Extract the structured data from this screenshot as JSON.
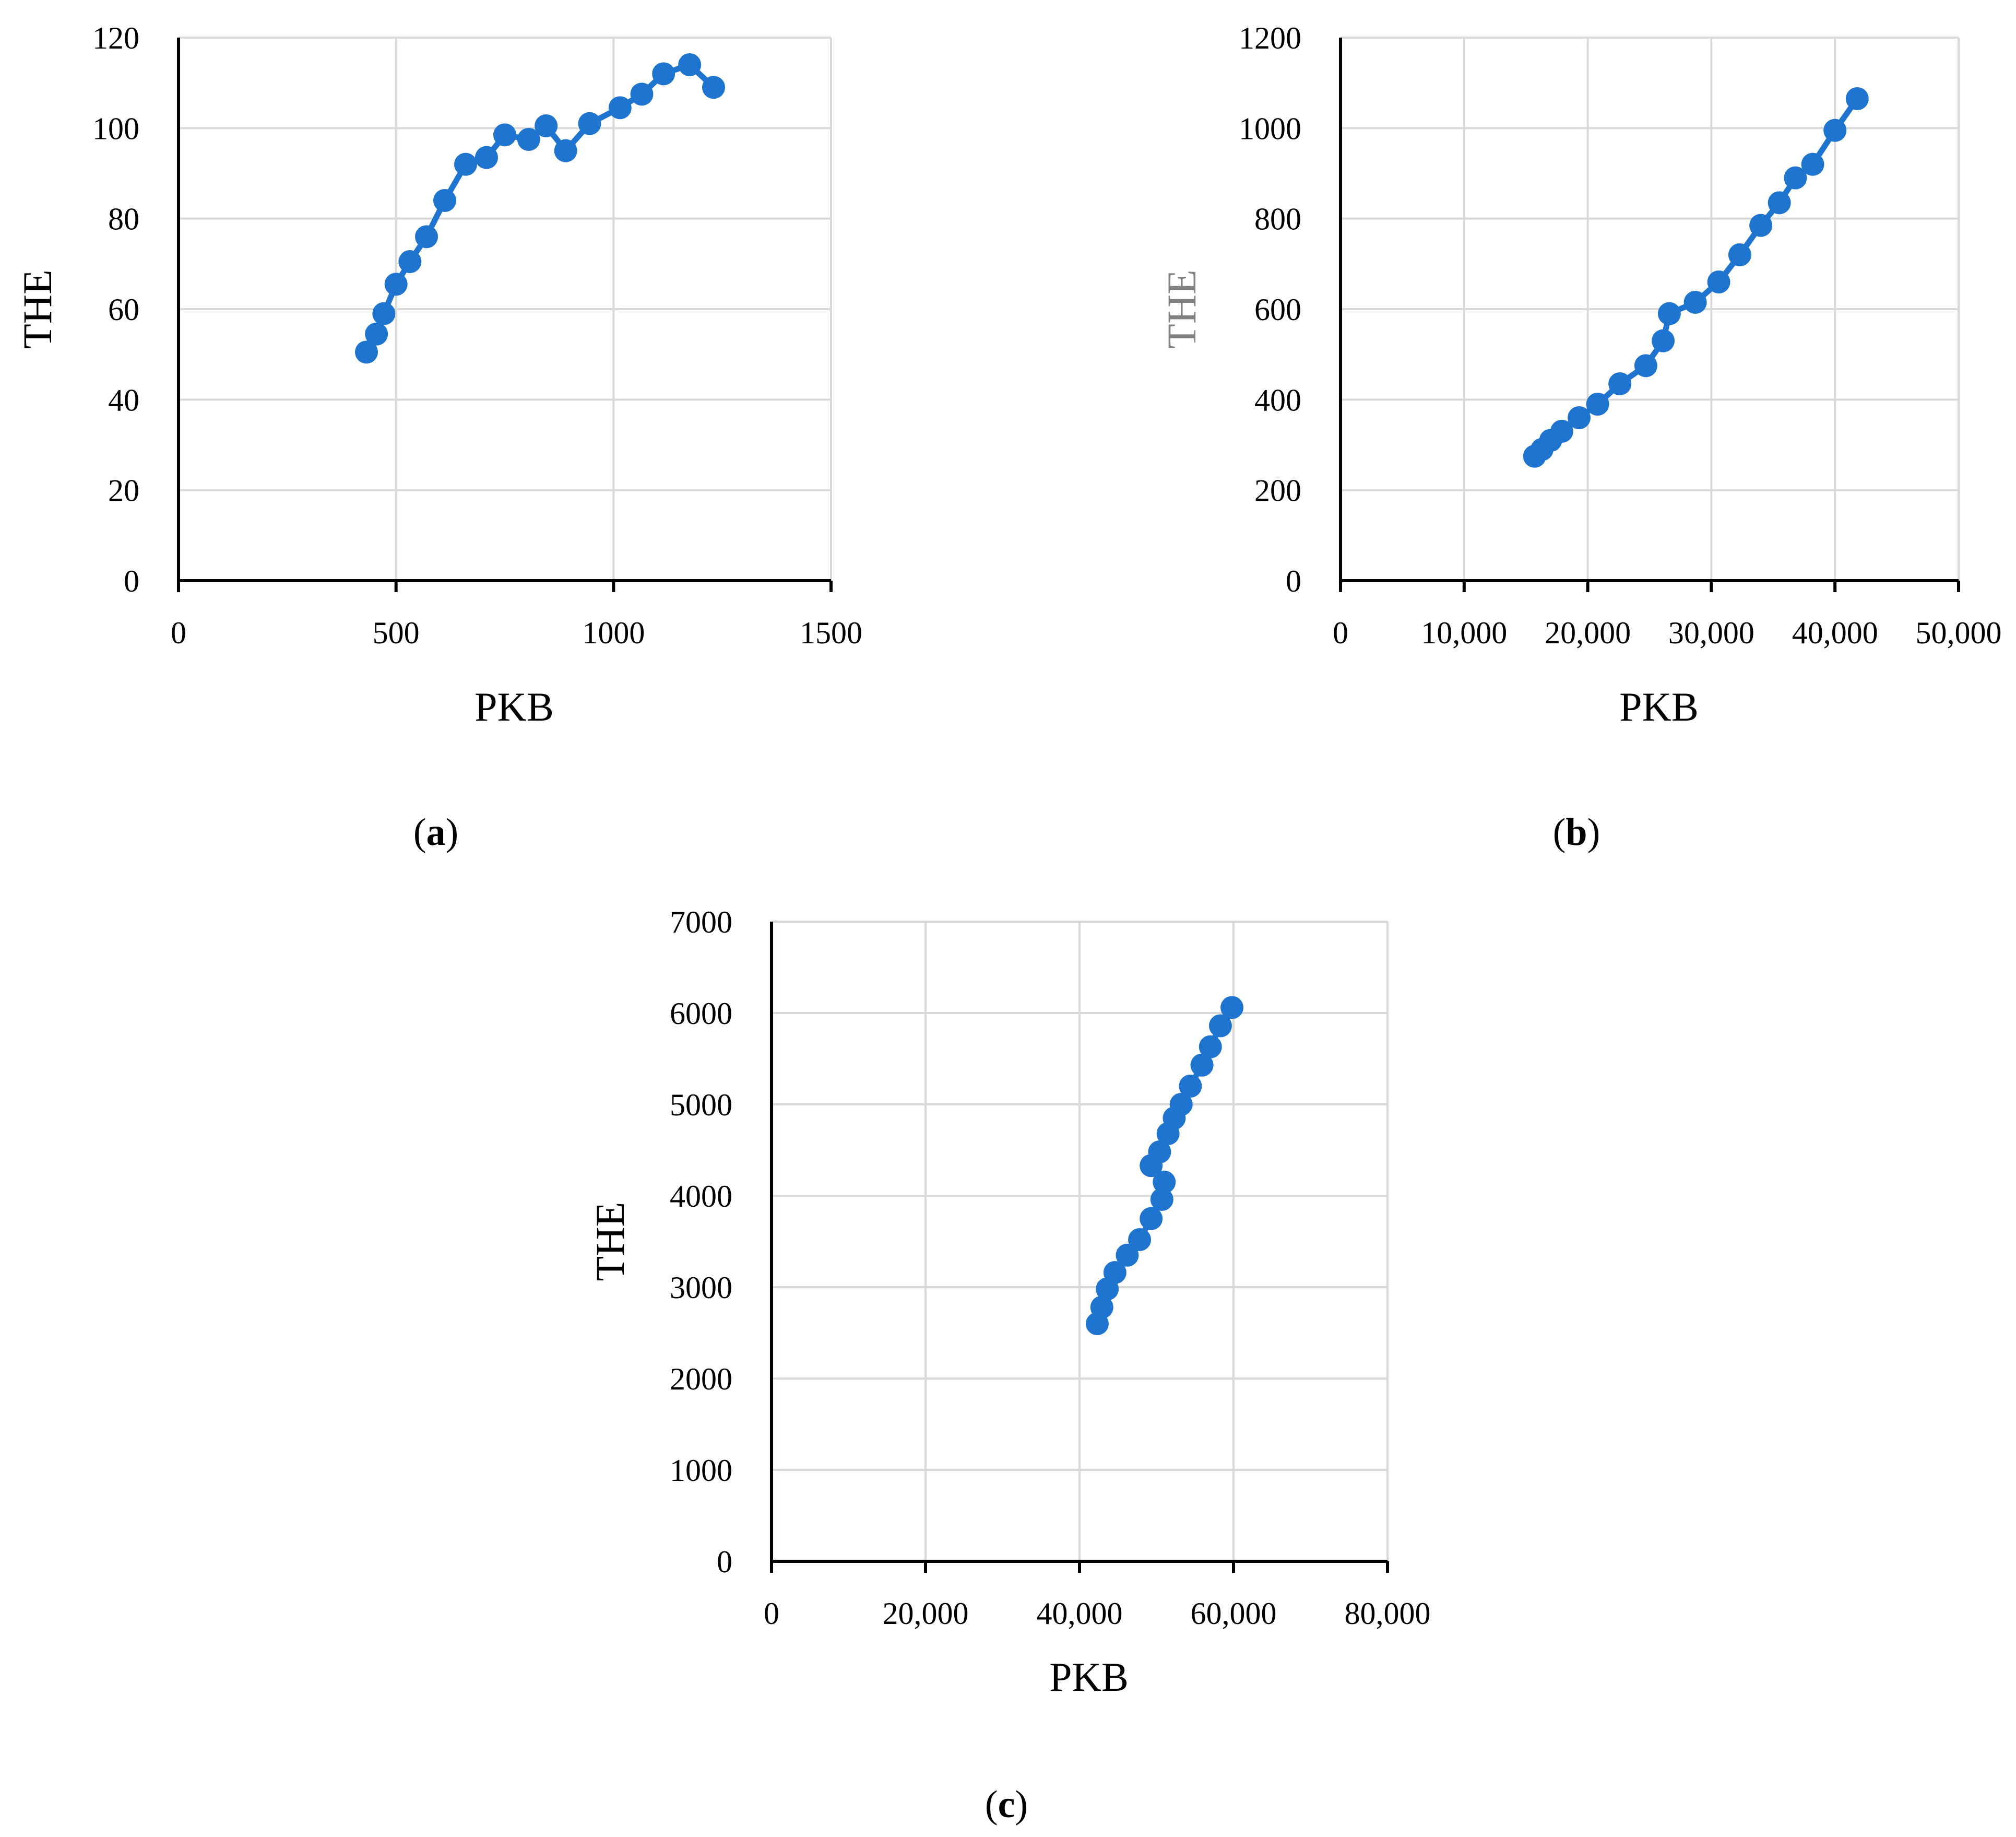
{
  "colors": {
    "series": "#1f74cf",
    "axis": "#000000",
    "grid": "#d9d9d9",
    "muted_title": "#808080"
  },
  "chart_data": [
    {
      "id": "a",
      "type": "line",
      "panel_label": "a",
      "xlabel": "PKB",
      "ylabel": "THE",
      "xlim": [
        0,
        1500
      ],
      "ylim": [
        0,
        120
      ],
      "xticks": [
        0,
        500,
        1000,
        1500
      ],
      "yticks": [
        0,
        20,
        40,
        60,
        80,
        100,
        120
      ],
      "xtick_labels": [
        "0",
        "500",
        "1000",
        "1500"
      ],
      "ytick_labels": [
        "0",
        "20",
        "40",
        "60",
        "80",
        "100",
        "120"
      ],
      "grid": true,
      "markers": true,
      "series": [
        {
          "x": [
            432,
            455,
            472,
            500,
            532,
            570,
            612,
            660,
            708,
            750,
            805,
            845,
            890,
            945,
            1015,
            1065,
            1115,
            1175,
            1230
          ],
          "y": [
            50.5,
            54.5,
            59,
            65.5,
            70.5,
            76,
            84,
            92,
            93.5,
            98.5,
            97.5,
            100.5,
            95,
            101,
            104.5,
            107.5,
            112,
            114,
            109
          ]
        }
      ]
    },
    {
      "id": "b",
      "type": "line",
      "panel_label": "b",
      "xlabel": "PKB",
      "ylabel": "THE",
      "ylabel_muted": true,
      "xlim": [
        0,
        50000
      ],
      "ylim": [
        0,
        1200
      ],
      "xticks": [
        0,
        10000,
        20000,
        30000,
        40000,
        50000
      ],
      "yticks": [
        0,
        200,
        400,
        600,
        800,
        1000,
        1200
      ],
      "xtick_labels": [
        "0",
        "10,000",
        "20,000",
        "30,000",
        "40,000",
        "50,000"
      ],
      "ytick_labels": [
        "0",
        "200",
        "400",
        "600",
        "800",
        "1000",
        "1200"
      ],
      "grid": true,
      "markers": true,
      "series": [
        {
          "x": [
            15700,
            16300,
            17000,
            17900,
            19300,
            20800,
            22600,
            24700,
            26100,
            26600,
            28700,
            30600,
            32300,
            34000,
            35500,
            36800,
            38200,
            40000,
            41800
          ],
          "y": [
            275,
            290,
            310,
            330,
            360,
            390,
            435,
            475,
            530,
            590,
            615,
            660,
            720,
            785,
            835,
            890,
            920,
            995,
            1065
          ]
        }
      ]
    },
    {
      "id": "c",
      "type": "line",
      "panel_label": "c",
      "xlabel": "PKB",
      "ylabel": "THE",
      "xlim": [
        0,
        80000
      ],
      "ylim": [
        0,
        7000
      ],
      "xticks": [
        0,
        20000,
        40000,
        60000,
        80000
      ],
      "yticks": [
        0,
        1000,
        2000,
        3000,
        4000,
        5000,
        6000,
        7000
      ],
      "xtick_labels": [
        "0",
        "20,000",
        "40,000",
        "60,000",
        "80,000"
      ],
      "ytick_labels": [
        "0",
        "1000",
        "2000",
        "3000",
        "4000",
        "5000",
        "6000",
        "7000"
      ],
      "grid": true,
      "markers": true,
      "series": [
        {
          "x": [
            42300,
            42900,
            43600,
            44600,
            46200,
            47800,
            49300,
            50700,
            51000,
            49300,
            50400,
            51500,
            52300,
            53200,
            54400,
            55900,
            57000,
            58300,
            59800
          ],
          "y": [
            2600,
            2780,
            2980,
            3160,
            3350,
            3520,
            3750,
            3960,
            4150,
            4330,
            4480,
            4680,
            4850,
            5000,
            5200,
            5430,
            5630,
            5860,
            6060
          ]
        }
      ]
    }
  ]
}
